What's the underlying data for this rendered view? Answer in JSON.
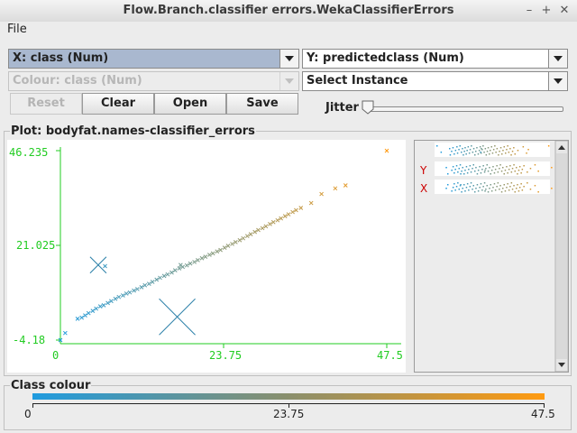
{
  "window": {
    "title": "Flow.Branch.classifier errors.WekaClassifierErrors",
    "controls": {
      "minimize": "–",
      "maximize": "+",
      "close": "✕"
    }
  },
  "menu": {
    "file": "File"
  },
  "selectors": {
    "x_axis": "X: class (Num)",
    "y_axis": "Y: predictedclass (Num)",
    "colour": "Colour: class (Num)",
    "instance": "Select Instance"
  },
  "buttons": {
    "reset": "Reset",
    "clear": "Clear",
    "open": "Open",
    "save": "Save"
  },
  "jitter": {
    "label": "Jitter",
    "value": 0
  },
  "plot": {
    "title": "Plot: bodyfat.names-classifier_errors"
  },
  "attr_panel": {
    "y_marker": "Y",
    "x_marker": "X"
  },
  "legend": {
    "title": "Class colour",
    "min": "0",
    "mid": "23.75",
    "max": "47.5"
  },
  "colors": {
    "low": "#1f9bdf",
    "high": "#ff9a10",
    "axis": "#22cc22"
  },
  "chart_data": {
    "type": "scatter",
    "xlabel": "",
    "ylabel": "",
    "x_ticks": [
      "0",
      "23.75",
      "47.5"
    ],
    "y_ticks": [
      "46.235",
      "21.025",
      "-4.18"
    ],
    "xlim": [
      0,
      47.5
    ],
    "ylim": [
      -4.18,
      46.235
    ],
    "grid": false,
    "points": [
      [
        0,
        -4.18
      ],
      [
        0.7,
        -2.3
      ],
      [
        2.5,
        1.5
      ],
      [
        3.1,
        1.8
      ],
      [
        3.6,
        2.4
      ],
      [
        4.1,
        3.0
      ],
      [
        4.7,
        3.6
      ],
      [
        5.2,
        4.2
      ],
      [
        5.8,
        4.8
      ],
      [
        6.3,
        5.1
      ],
      [
        6.9,
        5.7
      ],
      [
        7.4,
        6.2
      ],
      [
        8.0,
        6.8
      ],
      [
        8.5,
        7.3
      ],
      [
        9.1,
        7.7
      ],
      [
        9.6,
        8.2
      ],
      [
        10.1,
        8.5
      ],
      [
        10.7,
        9.0
      ],
      [
        11.2,
        9.4
      ],
      [
        11.8,
        9.9
      ],
      [
        12.3,
        10.4
      ],
      [
        12.9,
        10.8
      ],
      [
        13.4,
        11.3
      ],
      [
        14.0,
        11.9
      ],
      [
        14.5,
        12.4
      ],
      [
        15.1,
        12.9
      ],
      [
        15.6,
        13.3
      ],
      [
        16.2,
        13.8
      ],
      [
        16.7,
        14.4
      ],
      [
        17.3,
        14.9
      ],
      [
        17.8,
        15.3
      ],
      [
        18.4,
        15.7
      ],
      [
        18.9,
        16.2
      ],
      [
        19.5,
        16.6
      ],
      [
        20.0,
        17.1
      ],
      [
        20.6,
        17.6
      ],
      [
        21.1,
        18.0
      ],
      [
        21.7,
        18.5
      ],
      [
        22.2,
        18.9
      ],
      [
        22.8,
        19.4
      ],
      [
        23.3,
        19.8
      ],
      [
        23.9,
        20.4
      ],
      [
        24.4,
        20.9
      ],
      [
        25.0,
        21.4
      ],
      [
        25.5,
        21.9
      ],
      [
        26.1,
        22.4
      ],
      [
        26.6,
        22.9
      ],
      [
        27.2,
        23.5
      ],
      [
        27.7,
        24.0
      ],
      [
        28.3,
        24.6
      ],
      [
        28.8,
        25.1
      ],
      [
        29.4,
        25.6
      ],
      [
        29.9,
        26.1
      ],
      [
        30.5,
        26.7
      ],
      [
        31.0,
        27.2
      ],
      [
        31.6,
        27.7
      ],
      [
        32.1,
        28.2
      ],
      [
        32.7,
        28.8
      ],
      [
        33.2,
        29.3
      ],
      [
        33.8,
        29.9
      ],
      [
        34.3,
        30.4
      ],
      [
        35.0,
        31.0
      ],
      [
        36.5,
        32.3
      ],
      [
        38.0,
        34.7
      ],
      [
        40.0,
        36.2
      ],
      [
        41.5,
        37.0
      ],
      [
        47.5,
        46.2
      ],
      [
        6.5,
        15.5
      ],
      [
        17.5,
        15.8
      ]
    ],
    "large_markers": [
      [
        5.5,
        15.8
      ],
      [
        17.0,
        2.0
      ]
    ]
  }
}
